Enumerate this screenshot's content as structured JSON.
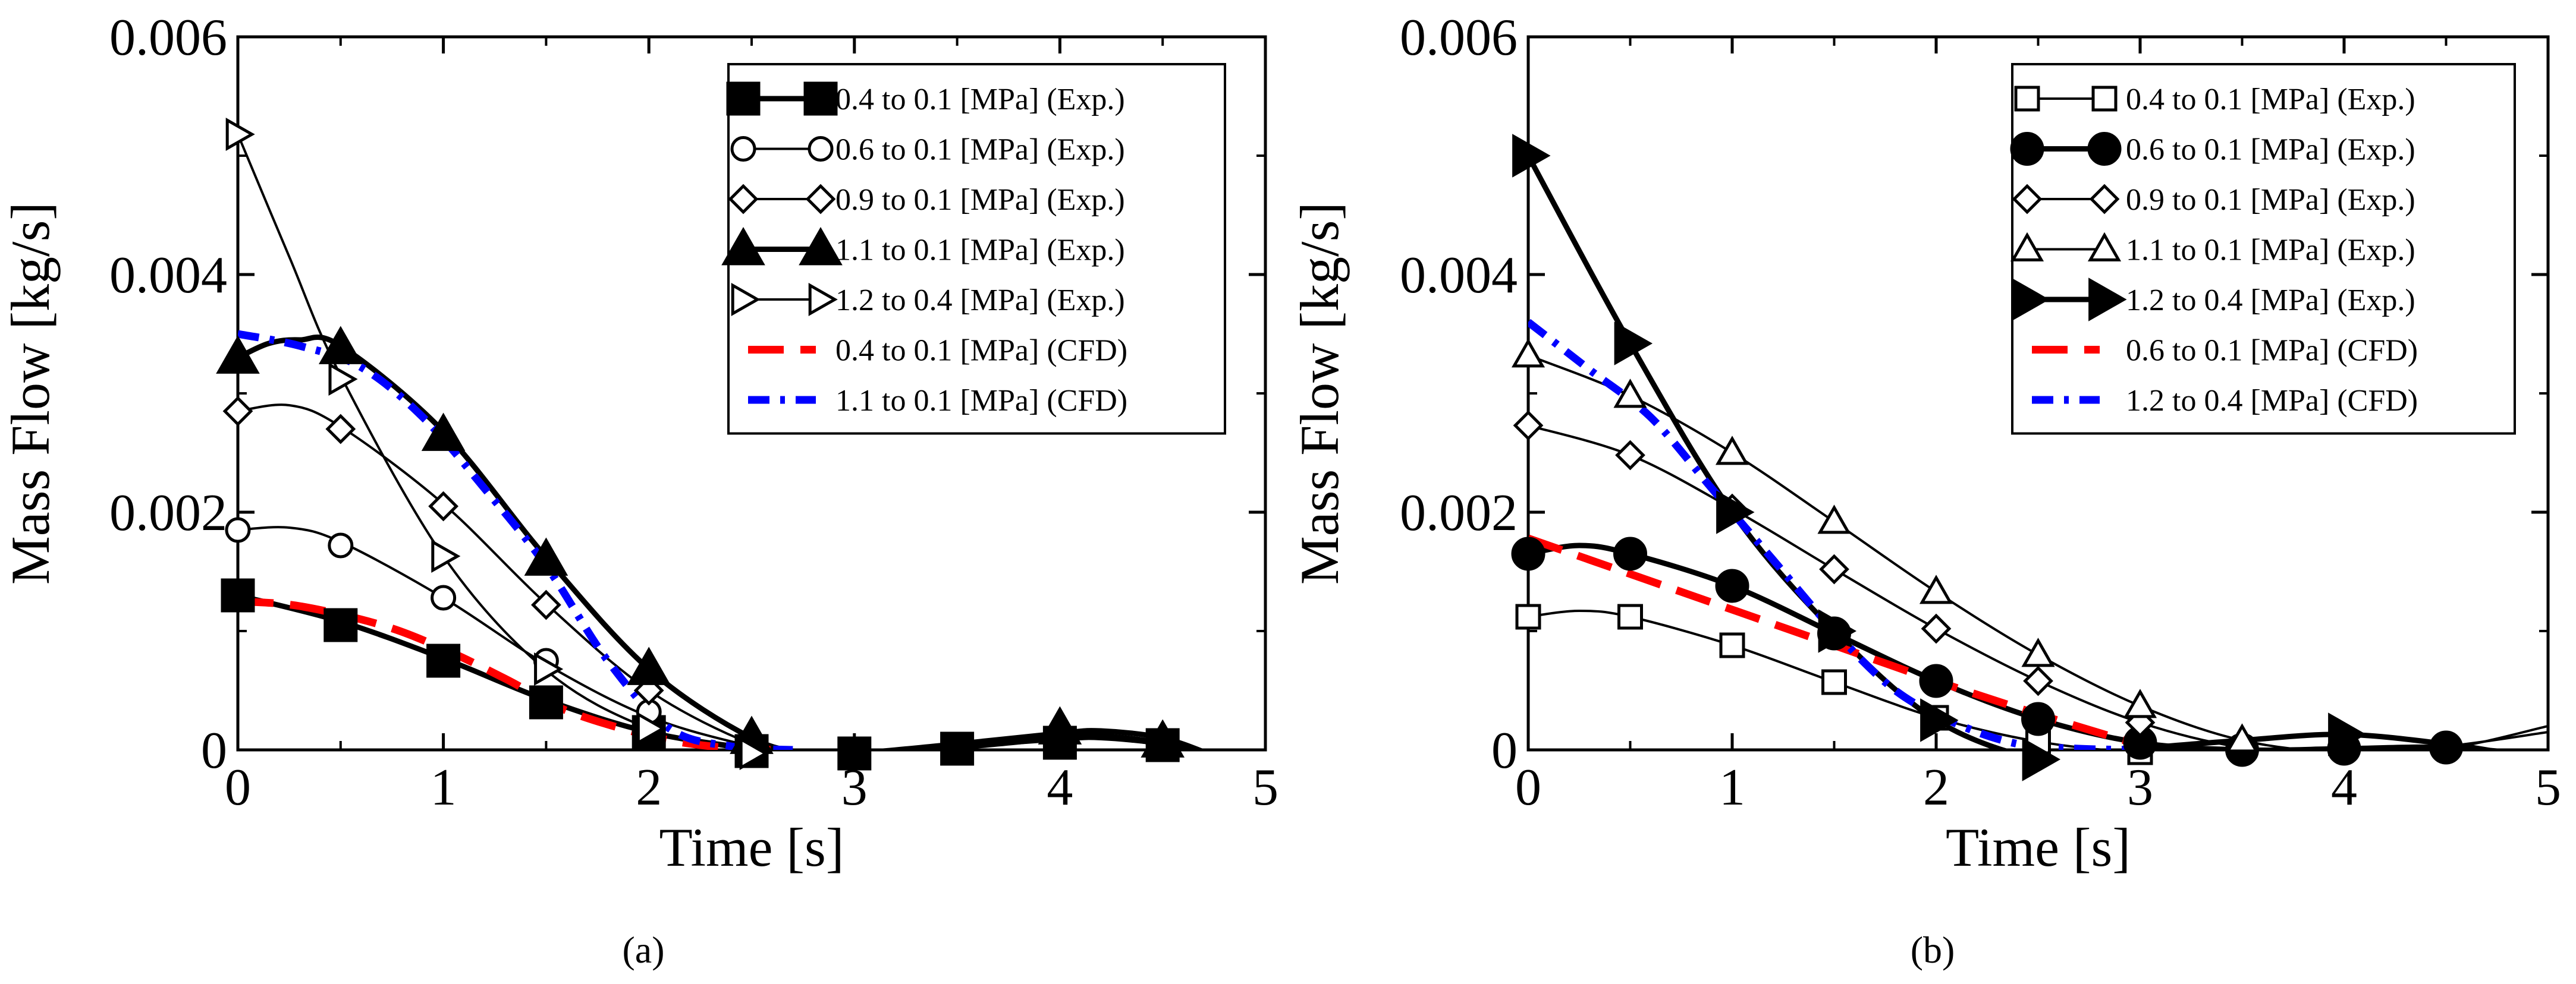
{
  "captions": [
    "(a)",
    "(b)"
  ],
  "chart_data": [
    {
      "type": "line",
      "panel": "a",
      "xlabel": "Time [s]",
      "ylabel": "Mass Flow [kg/s]",
      "xlim": [
        0,
        5
      ],
      "ylim": [
        0,
        0.006
      ],
      "xticks": [
        0,
        1,
        2,
        3,
        4,
        5
      ],
      "xtick_labels": [
        "0",
        "1",
        "2",
        "3",
        "4",
        "5"
      ],
      "yticks": [
        0,
        0.002,
        0.004,
        0.006
      ],
      "ytick_labels": [
        "0",
        "0.002",
        "0.004",
        "0.006"
      ],
      "grid": false,
      "legend_position": "top-right",
      "series": [
        {
          "name": "0.4 to 0.1 [MPa] (Exp.)",
          "style": "exp",
          "marker": "square-filled",
          "thick": true,
          "x": [
            0,
            0.5,
            1,
            1.5,
            2,
            2.5,
            3,
            3.5,
            4,
            4.5
          ],
          "y": [
            0.0013,
            0.00105,
            0.00075,
            0.0004,
            0.00015,
            -1e-05,
            -3e-05,
            1e-05,
            6e-05,
            4e-05
          ],
          "curve_x": [
            0,
            0.5,
            1,
            1.5,
            2,
            2.5,
            2.8,
            3,
            3.5,
            4,
            4.2,
            4.5,
            4.75
          ],
          "curve_y": [
            0.0013,
            0.00108,
            0.00077,
            0.00042,
            0.00015,
            1e-05,
            -4e-05,
            -3e-05,
            2e-05,
            0.0001,
            0.00011,
            5e-05,
            -5e-05
          ]
        },
        {
          "name": "0.6 to 0.1 [MPa] (Exp.)",
          "style": "exp",
          "marker": "circle-open",
          "thick": false,
          "x": [
            0,
            0.5,
            1,
            1.5,
            2
          ],
          "y": [
            0.00185,
            0.00172,
            0.00128,
            0.00075,
            0.00032
          ],
          "curve_x": [
            0,
            0.25,
            0.5,
            1,
            1.5,
            2,
            2.5,
            2.8,
            3,
            3.5,
            4,
            4.2,
            4.5,
            4.75
          ],
          "curve_y": [
            0.00185,
            0.00187,
            0.00175,
            0.00128,
            0.00072,
            0.00028,
            3e-05,
            -4e-05,
            -3e-05,
            2e-05,
            0.0001,
            0.00012,
            6e-05,
            -5e-05
          ]
        },
        {
          "name": "0.9 to 0.1 [MPa] (Exp.)",
          "style": "exp",
          "marker": "diamond-open",
          "thick": false,
          "x": [
            0,
            0.5,
            1,
            1.5,
            2
          ],
          "y": [
            0.00285,
            0.0027,
            0.00205,
            0.00122,
            0.0005
          ],
          "curve_x": [
            0,
            0.25,
            0.5,
            1,
            1.5,
            2,
            2.5,
            2.8,
            3,
            3.5,
            4,
            4.2,
            4.5,
            4.75
          ],
          "curve_y": [
            0.00285,
            0.0029,
            0.00272,
            0.00207,
            0.00123,
            0.0005,
            5e-05,
            -4e-05,
            -3e-05,
            3e-05,
            0.00012,
            0.00013,
            7e-05,
            -5e-05
          ]
        },
        {
          "name": "1.1 to 0.1 [MPa] (Exp.)",
          "style": "exp",
          "marker": "triangle-filled",
          "thick": true,
          "x": [
            0,
            0.5,
            1,
            1.5,
            2,
            2.5,
            4,
            4.5
          ],
          "y": [
            0.0033,
            0.00338,
            0.00265,
            0.0016,
            0.00068,
            0.0001,
            0.00018,
            7e-05
          ],
          "curve_x": [
            0,
            0.15,
            0.3,
            0.5,
            1,
            1.5,
            2,
            2.5,
            2.8,
            3,
            3.5,
            4,
            4.2,
            4.5,
            4.75
          ],
          "curve_y": [
            0.0033,
            0.00342,
            0.00345,
            0.0034,
            0.00268,
            0.00162,
            0.00068,
            0.0001,
            -3e-05,
            -3e-05,
            5e-05,
            0.00014,
            0.00016,
            0.0001,
            -5e-05
          ]
        },
        {
          "name": "1.2 to 0.4 [MPa] (Exp.)",
          "style": "exp",
          "marker": "triangle-right-open",
          "thick": false,
          "x": [
            0,
            0.5,
            1,
            1.5,
            2,
            2.5
          ],
          "y": [
            0.00518,
            0.00312,
            0.00163,
            0.00068,
            0.00018,
            -3e-05
          ],
          "curve_x": [
            0,
            0.25,
            0.5,
            1,
            1.5,
            2,
            2.5,
            2.8,
            3,
            3.5,
            4,
            4.2,
            4.5,
            4.75
          ],
          "curve_y": [
            0.00518,
            0.00415,
            0.00315,
            0.00163,
            0.00067,
            0.00018,
            -1e-05,
            -4e-05,
            -3e-05,
            2e-05,
            8e-05,
            9e-05,
            4e-05,
            -5e-05
          ]
        },
        {
          "name": "0.4 to 0.1 [MPa] (CFD)",
          "style": "cfd",
          "color": "#ff0000",
          "dash": "dashed",
          "x": [
            0,
            0.3,
            0.7,
            1.0,
            1.3,
            1.6,
            2.0,
            2.3,
            2.6
          ],
          "y": [
            0.00125,
            0.00121,
            0.00105,
            0.00085,
            0.0006,
            0.00033,
            0.00012,
            3e-05,
            0
          ]
        },
        {
          "name": "1.1 to 0.1 [MPa] (CFD)",
          "style": "cfd",
          "color": "#0000ff",
          "dash": "dash-dot",
          "x": [
            0,
            0.3,
            0.6,
            0.9,
            1.2,
            1.5,
            1.8,
            2.1,
            2.4,
            2.7
          ],
          "y": [
            0.0035,
            0.0034,
            0.00322,
            0.0028,
            0.0022,
            0.00155,
            0.00075,
            0.00018,
            3e-05,
            0
          ]
        }
      ]
    },
    {
      "type": "line",
      "panel": "b",
      "xlabel": "Time [s]",
      "ylabel": "Mass Flow [kg/s]",
      "xlim": [
        0,
        5
      ],
      "ylim": [
        0,
        0.006
      ],
      "xticks": [
        0,
        1,
        2,
        3,
        4,
        5
      ],
      "xtick_labels": [
        "0",
        "1",
        "2",
        "3",
        "4",
        "5"
      ],
      "yticks": [
        0,
        0.002,
        0.004,
        0.006
      ],
      "ytick_labels": [
        "0",
        "0.002",
        "0.004",
        "0.006"
      ],
      "grid": false,
      "legend_position": "top-right",
      "series": [
        {
          "name": "0.4 to 0.1 [MPa] (Exp.)",
          "style": "exp",
          "marker": "square-open",
          "thick": false,
          "x": [
            0,
            0.5,
            1,
            1.5,
            2,
            2.5,
            3
          ],
          "y": [
            0.00112,
            0.00112,
            0.00088,
            0.00057,
            0.00027,
            7e-05,
            -2e-05
          ],
          "curve_x": [
            0,
            0.25,
            0.5,
            1,
            1.5,
            2,
            2.5,
            3,
            3.5,
            4,
            4.5,
            5
          ],
          "curve_y": [
            0.00112,
            0.00117,
            0.00112,
            0.00088,
            0.00057,
            0.00027,
            7e-05,
            -2e-05,
            -1e-05,
            1e-05,
            2e-05,
            -5e-05
          ]
        },
        {
          "name": "0.6 to 0.1 [MPa] (Exp.)",
          "style": "exp",
          "marker": "circle-filled",
          "thick": true,
          "x": [
            0,
            0.5,
            1,
            1.5,
            2,
            2.5,
            3,
            3.5,
            4,
            4.5
          ],
          "y": [
            0.00165,
            0.00165,
            0.00138,
            0.00098,
            0.00058,
            0.00026,
            6e-05,
            0,
            1e-05,
            2e-05
          ],
          "curve_x": [
            0,
            0.25,
            0.5,
            1,
            1.5,
            2,
            2.5,
            3,
            3.5,
            4,
            4.5,
            5
          ],
          "curve_y": [
            0.00165,
            0.00172,
            0.00165,
            0.00138,
            0.00098,
            0.00058,
            0.00026,
            6e-05,
            0,
            1e-05,
            2e-05,
            -5e-05
          ]
        },
        {
          "name": "0.9 to 0.1 [MPa] (Exp.)",
          "style": "exp",
          "marker": "diamond-open",
          "thick": false,
          "x": [
            0,
            0.5,
            1,
            1.5,
            2,
            2.5,
            3
          ],
          "y": [
            0.00273,
            0.00248,
            0.00203,
            0.00152,
            0.00102,
            0.00058,
            0.00023
          ],
          "curve_x": [
            0,
            0.5,
            1,
            1.5,
            2,
            2.5,
            3,
            3.5,
            4,
            4.5,
            5
          ],
          "curve_y": [
            0.00273,
            0.00248,
            0.00203,
            0.00152,
            0.00102,
            0.00058,
            0.00023,
            2e-05,
            -3e-05,
            1e-05,
            0.0002
          ]
        },
        {
          "name": "1.1 to 0.1 [MPa] (Exp.)",
          "style": "exp",
          "marker": "triangle-open",
          "thick": false,
          "x": [
            0,
            0.5,
            1,
            1.5,
            2,
            2.5,
            3,
            3.5
          ],
          "y": [
            0.00332,
            0.00298,
            0.0025,
            0.00192,
            0.00133,
            0.0008,
            0.00037,
            8e-05
          ],
          "curve_x": [
            0,
            0.5,
            1,
            1.5,
            2,
            2.5,
            3,
            3.5,
            4,
            4.5,
            5
          ],
          "curve_y": [
            0.00332,
            0.00298,
            0.0025,
            0.00192,
            0.00133,
            0.0008,
            0.00037,
            8e-05,
            -2e-05,
            3e-05,
            0.00015
          ]
        },
        {
          "name": "1.2 to 0.4 [MPa] (Exp.)",
          "style": "exp",
          "marker": "triangle-right-filled",
          "thick": true,
          "x": [
            0,
            0.5,
            1,
            1.5,
            2,
            2.5,
            4
          ],
          "y": [
            0.005,
            0.00342,
            0.002,
            0.001,
            0.00025,
            -8e-05,
            0.00013
          ],
          "curve_x": [
            0,
            0.5,
            1,
            1.5,
            2,
            2.5,
            2.8,
            3,
            3.5,
            4,
            4.5,
            4.8
          ],
          "curve_y": [
            0.005,
            0.00342,
            0.002,
            0.001,
            0.00025,
            -8e-05,
            -4e-05,
            1e-05,
            8e-05,
            0.00013,
            5e-05,
            -3e-05
          ]
        },
        {
          "name": "0.6 to 0.1 [MPa] (CFD)",
          "style": "cfd",
          "color": "#ff0000",
          "dash": "dashed",
          "x": [
            0,
            0.5,
            1.0,
            1.5,
            2.0,
            2.5,
            3.0
          ],
          "y": [
            0.00178,
            0.00148,
            0.00118,
            0.00088,
            0.00058,
            0.0003,
            4e-05
          ]
        },
        {
          "name": "1.2 to 0.4 [MPa] (CFD)",
          "style": "cfd",
          "color": "#0000ff",
          "dash": "dash-dot",
          "x": [
            0,
            0.3,
            0.6,
            0.9,
            1.2,
            1.5,
            1.8,
            2.1,
            2.4,
            2.7,
            3.0
          ],
          "y": [
            0.0036,
            0.0032,
            0.0028,
            0.0022,
            0.0016,
            0.001,
            0.0005,
            0.00022,
            5e-05,
            1e-05,
            0
          ]
        }
      ]
    }
  ]
}
